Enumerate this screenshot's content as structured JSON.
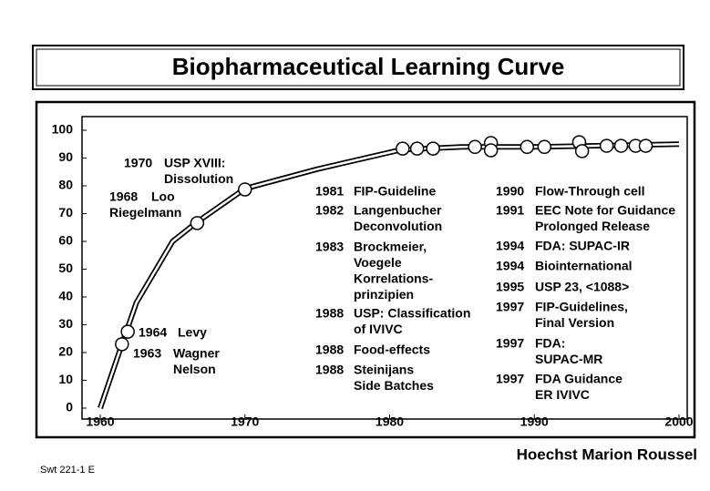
{
  "chart_data": {
    "type": "line",
    "title": "Biopharmaceutical Learning Curve",
    "xlim": [
      1960,
      2000
    ],
    "xticks": [
      1960,
      1970,
      1980,
      1990,
      2000
    ],
    "ylim": [
      0,
      100
    ],
    "yticks": [
      0,
      10,
      20,
      30,
      40,
      50,
      60,
      70,
      80,
      90,
      100
    ],
    "color": "#000000",
    "series": [
      {
        "x": [
          1960,
          1961.5,
          1962.5,
          1965,
          1966.7,
          1970,
          1975,
          1980.8,
          1985,
          1990,
          1995,
          2000
        ],
        "values": [
          0,
          23,
          38,
          60,
          67,
          79,
          86,
          93,
          94,
          94,
          94.5,
          95
        ]
      },
      {
        "x": [
          1961.5,
          1961.9,
          1966.7,
          1970,
          1980.9,
          1981.9,
          1983.0,
          1985.9,
          1987.0,
          1987.0,
          1989.5,
          1990.7,
          1993.1,
          1993.3,
          1995,
          1996,
          1997,
          1997.7
        ],
        "values": [
          23,
          27.5,
          66.6,
          78.7,
          93.4,
          93.4,
          93.4,
          94,
          95.4,
          92.8,
          94,
          94,
          95.7,
          92.5,
          94.4,
          94.4,
          94.4,
          94.4
        ]
      }
    ],
    "annotations": [
      {
        "year": "1970",
        "lines": [
          "USP XVIII:",
          "Dissolution"
        ]
      },
      {
        "year": "1968",
        "lines": [
          "Loo",
          "Riegelmann"
        ]
      },
      {
        "year": "1964",
        "lines": [
          "Levy"
        ]
      },
      {
        "year": "1963",
        "lines": [
          "Wagner",
          "Nelson"
        ]
      },
      {
        "year": "1981",
        "lines": [
          "FIP-Guideline"
        ]
      },
      {
        "year": "1982",
        "lines": [
          "Langenbucher",
          "Deconvolution"
        ]
      },
      {
        "year": "1983",
        "lines": [
          "Brockmeier,",
          "Voegele",
          "Korrelations-",
          "prinzipien"
        ]
      },
      {
        "year": "1988",
        "lines": [
          "USP: Classification",
          "of IVIVC"
        ]
      },
      {
        "year": "1988",
        "lines": [
          "Food-effects"
        ]
      },
      {
        "year": "1988",
        "lines": [
          "Steinijans",
          "Side Batches"
        ]
      },
      {
        "year": "1990",
        "lines": [
          "Flow-Through cell"
        ]
      },
      {
        "year": "1991",
        "lines": [
          "EEC Note for Guidance",
          "Prolonged Release"
        ]
      },
      {
        "year": "1994",
        "lines": [
          "FDA: SUPAC-IR"
        ]
      },
      {
        "year": "1994",
        "lines": [
          "Biointernational"
        ]
      },
      {
        "year": "1995",
        "lines": [
          "USP 23, <1088>"
        ]
      },
      {
        "year": "1997",
        "lines": [
          "FIP-Guidelines,",
          "Final Version"
        ]
      },
      {
        "year": "1997",
        "lines": [
          "FDA:",
          "SUPAC-MR"
        ]
      },
      {
        "year": "1997",
        "lines": [
          "FDA Guidance",
          "ER IVIVC"
        ]
      }
    ],
    "company": "Hoechst Marion Roussel",
    "code": "Swt 221-1 E"
  }
}
